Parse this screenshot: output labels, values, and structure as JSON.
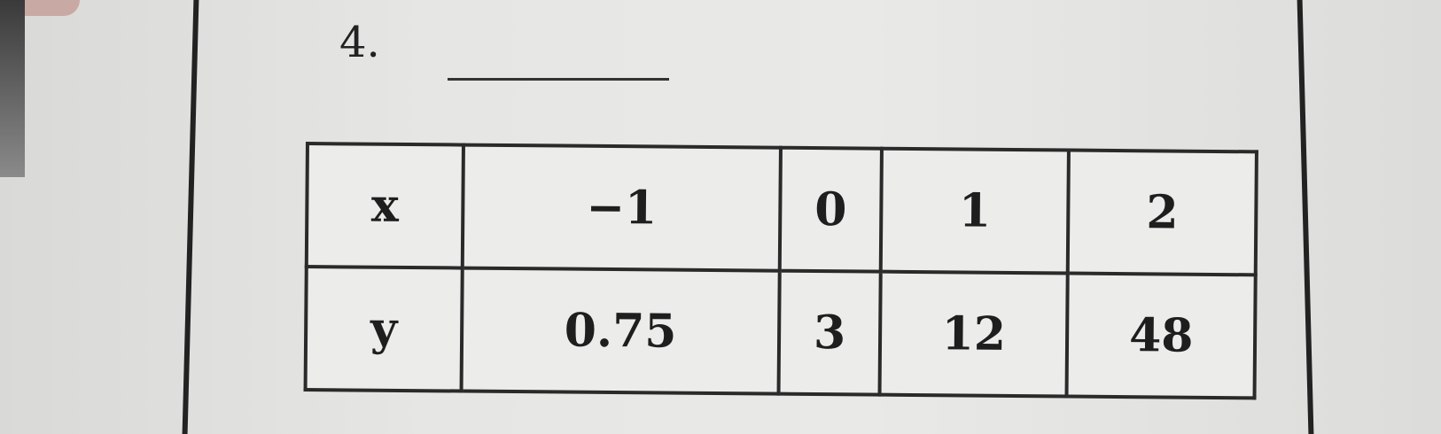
{
  "problem_number": "4.",
  "table": {
    "rows": [
      {
        "label": "x",
        "values": [
          "−1",
          "0",
          "1",
          "2"
        ]
      },
      {
        "label": "y",
        "values": [
          "0.75",
          "3",
          "12",
          "48"
        ]
      }
    ]
  }
}
